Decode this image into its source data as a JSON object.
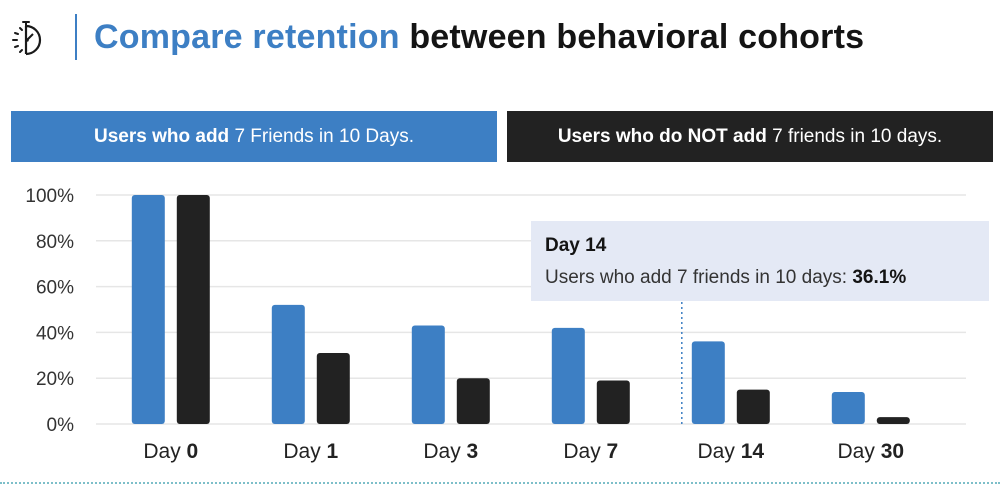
{
  "title": {
    "accent": "Compare retention",
    "rest": "between behavioral cohorts"
  },
  "legend": {
    "cohort_a": {
      "bold": "Users who add",
      "light": "7 Friends in 10 Days."
    },
    "cohort_b": {
      "bold_1": "Users who do",
      "bold_2": "NOT add",
      "light": "7 friends in 10 days."
    }
  },
  "tooltip": {
    "title": "Day 14",
    "label": "Users who add 7 friends in 10 days:",
    "value": "36.1%"
  },
  "colors": {
    "cohort_a": "#3d7fc4",
    "cohort_b": "#222222",
    "grid": "#e6e6e6",
    "tooltip_bg": "#e4e9f5"
  },
  "chart_data": {
    "type": "bar",
    "x_prefix": "Day",
    "categories": [
      "0",
      "1",
      "3",
      "7",
      "14",
      "30"
    ],
    "series": [
      {
        "values": [
          100,
          52,
          43,
          42,
          36.1,
          14
        ]
      },
      {
        "values": [
          100,
          31,
          20,
          19,
          15,
          3
        ]
      }
    ],
    "yticks": [
      "0%",
      "20%",
      "40%",
      "60%",
      "80%",
      "100%"
    ],
    "ylim": [
      0,
      100
    ],
    "grid": true,
    "highlight_category": "14"
  }
}
